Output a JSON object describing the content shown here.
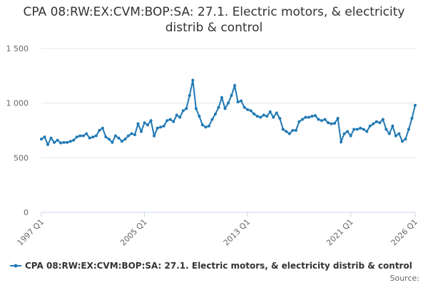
{
  "chart_data": {
    "type": "line",
    "title": "CPA 08:RW:EX:CVM:BOP:SA: 27.1. Electric motors, & electricity distrib & control",
    "source": "Source:",
    "categories": [
      "1997 Q1",
      null,
      null,
      null,
      null,
      null,
      null,
      null,
      null,
      null,
      null,
      null,
      null,
      null,
      null,
      null,
      null,
      null,
      null,
      null,
      null,
      null,
      null,
      null,
      null,
      null,
      null,
      null,
      null,
      null,
      null,
      null,
      "2005 Q1",
      null,
      null,
      null,
      null,
      null,
      null,
      null,
      null,
      null,
      null,
      null,
      null,
      null,
      null,
      null,
      null,
      null,
      null,
      null,
      null,
      null,
      null,
      null,
      null,
      null,
      null,
      null,
      null,
      null,
      null,
      null,
      "2013 Q1",
      null,
      null,
      null,
      null,
      null,
      null,
      null,
      null,
      null,
      null,
      null,
      null,
      null,
      null,
      null,
      null,
      null,
      null,
      null,
      null,
      null,
      null,
      null,
      null,
      null,
      null,
      null,
      null,
      null,
      null,
      null,
      "2021 Q1",
      null,
      null,
      null,
      null,
      null,
      null,
      null,
      null,
      null,
      null,
      null,
      null,
      null,
      null,
      null,
      null,
      null,
      null,
      null,
      "2026 Q1"
    ],
    "series": [
      {
        "name": "CPA 08:RW:EX:CVM:BOP:SA: 27.1. Electric motors, & electricity distrib & control",
        "color": "#1f78b4",
        "values": [
          670,
          690,
          620,
          680,
          640,
          660,
          635,
          640,
          640,
          650,
          660,
          690,
          700,
          700,
          720,
          680,
          690,
          700,
          750,
          770,
          690,
          670,
          640,
          700,
          680,
          650,
          670,
          700,
          720,
          710,
          810,
          740,
          820,
          800,
          840,
          700,
          770,
          780,
          790,
          840,
          850,
          830,
          890,
          870,
          930,
          950,
          1070,
          1210,
          950,
          880,
          800,
          780,
          790,
          850,
          900,
          960,
          1050,
          950,
          1000,
          1070,
          1160,
          1010,
          1020,
          960,
          940,
          930,
          900,
          880,
          870,
          890,
          880,
          920,
          870,
          910,
          860,
          760,
          740,
          720,
          750,
          750,
          830,
          850,
          870,
          870,
          880,
          885,
          850,
          840,
          850,
          820,
          810,
          815,
          860,
          645,
          720,
          740,
          700,
          760,
          760,
          770,
          760,
          740,
          790,
          810,
          830,
          820,
          850,
          760,
          720,
          790,
          700,
          720,
          650,
          670,
          760,
          860,
          980
        ]
      }
    ],
    "ylim": [
      0,
      1500
    ],
    "yticks": [
      0,
      500,
      {
        "value": 1000,
        "label": "1 000"
      },
      {
        "value": 1500,
        "label": "1 500"
      }
    ],
    "grid": true
  }
}
